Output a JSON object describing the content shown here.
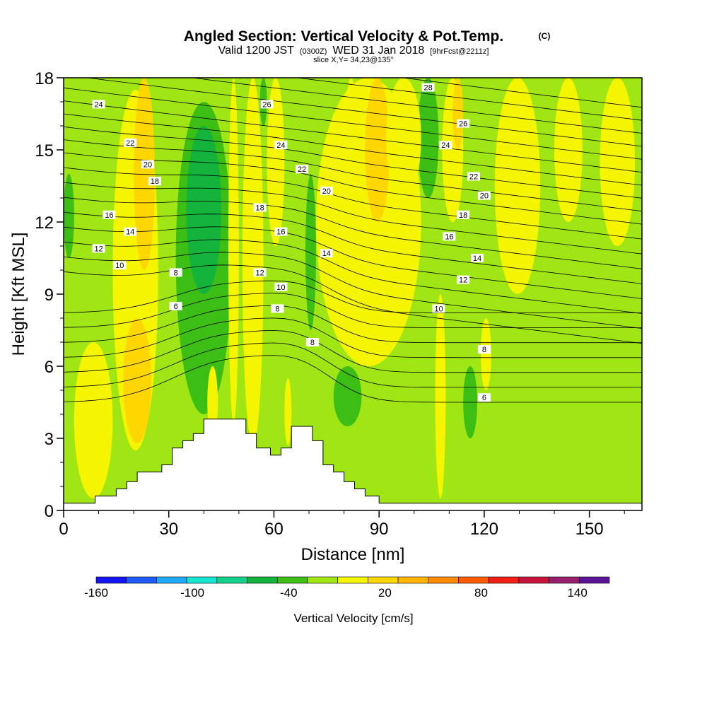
{
  "title": "Angled Section: Vertical Velocity & Pot.Temp.",
  "title_mark": "(C)",
  "subtitle": {
    "valid": "Valid 1200 JST",
    "utc": "(0300Z)",
    "date": "WED 31 Jan 2018",
    "fcst": "[9hrFcst@2211z]"
  },
  "slice": "slice X,Y= 34,23@135°",
  "chart_data": {
    "type": "heatmap",
    "xlabel": "Distance [nm]",
    "ylabel": "Height [Kft MSL]",
    "xlim": [
      0,
      165
    ],
    "ylim": [
      0,
      18
    ],
    "x_ticks": [
      0,
      30,
      60,
      90,
      120,
      150
    ],
    "y_ticks": [
      0,
      3,
      6,
      9,
      12,
      15,
      18
    ],
    "colorbar": {
      "label": "Vertical Velocity [cm/s]",
      "range": [
        -160,
        160
      ],
      "step": 20,
      "tick_values": [
        -160,
        -100,
        -40,
        20,
        80,
        140
      ],
      "tick_labels": [
        "-160",
        "-100",
        "-40",
        "20",
        "80",
        "140"
      ],
      "colors": [
        "#1414f0",
        "#1e5af5",
        "#1eaaf5",
        "#14e6d2",
        "#14d28c",
        "#14b43c",
        "#3cbe14",
        "#a0e614",
        "#f5f500",
        "#ffd700",
        "#ffb400",
        "#ff8c00",
        "#ff5a00",
        "#f01e14",
        "#c8143c",
        "#961e6e",
        "#5a1496"
      ]
    },
    "velocity_bands": [
      {
        "x0": 0,
        "x1": 3,
        "y0": 10.5,
        "y1": 14,
        "value": -30
      },
      {
        "x0": 3,
        "x1": 14,
        "y0": 0.5,
        "y1": 7,
        "value": 10
      },
      {
        "x0": 14,
        "x1": 27,
        "y0": 2.5,
        "y1": 17.5,
        "value": 10
      },
      {
        "x0": 17,
        "x1": 25,
        "y0": 2.8,
        "y1": 8,
        "value": 30
      },
      {
        "x0": 20,
        "x1": 26,
        "y0": 10,
        "y1": 18,
        "value": 30
      },
      {
        "x0": 32,
        "x1": 48,
        "y0": 4,
        "y1": 17,
        "value": -30
      },
      {
        "x0": 35,
        "x1": 45,
        "y0": 9,
        "y1": 16,
        "value": -50
      },
      {
        "x0": 41,
        "x1": 44,
        "y0": 3,
        "y1": 6,
        "value": 10
      },
      {
        "x0": 47,
        "x1": 50,
        "y0": 3.6,
        "y1": 18,
        "value": 10
      },
      {
        "x0": 51,
        "x1": 57,
        "y0": 2.7,
        "y1": 18,
        "value": 10
      },
      {
        "x0": 56,
        "x1": 58,
        "y0": 16,
        "y1": 18,
        "value": -30
      },
      {
        "x0": 58,
        "x1": 63,
        "y0": 11,
        "y1": 18,
        "value": 10
      },
      {
        "x0": 63,
        "x1": 65,
        "y0": 2.7,
        "y1": 5.5,
        "value": 10
      },
      {
        "x0": 69,
        "x1": 72,
        "y0": 7.5,
        "y1": 14,
        "value": -30
      },
      {
        "x0": 72,
        "x1": 102,
        "y0": 6,
        "y1": 18,
        "value": 10
      },
      {
        "x0": 80,
        "x1": 84,
        "y0": 11,
        "y1": 18,
        "value": 10
      },
      {
        "x0": 86,
        "x1": 93,
        "y0": 12,
        "y1": 18,
        "value": 30
      },
      {
        "x0": 77,
        "x1": 85,
        "y0": 3.5,
        "y1": 6,
        "value": -30
      },
      {
        "x0": 91,
        "x1": 99,
        "y0": 9,
        "y1": 13,
        "value": 10
      },
      {
        "x0": 101,
        "x1": 107,
        "y0": 13,
        "y1": 18,
        "value": -30
      },
      {
        "x0": 92,
        "x1": 102,
        "y0": 13,
        "y1": 18,
        "value": 10
      },
      {
        "x0": 108,
        "x1": 114,
        "y0": 12,
        "y1": 18,
        "value": 10
      },
      {
        "x0": 111,
        "x1": 114,
        "y0": 15,
        "y1": 18,
        "value": 30
      },
      {
        "x0": 106,
        "x1": 109,
        "y0": 0.5,
        "y1": 9,
        "value": 10
      },
      {
        "x0": 114,
        "x1": 118,
        "y0": 3,
        "y1": 6,
        "value": -30
      },
      {
        "x0": 119,
        "x1": 122,
        "y0": 5,
        "y1": 8,
        "value": 10
      },
      {
        "x0": 123,
        "x1": 136,
        "y0": 9,
        "y1": 18,
        "value": 10
      },
      {
        "x0": 140,
        "x1": 148,
        "y0": 12,
        "y1": 18,
        "value": 10
      },
      {
        "x0": 153,
        "x1": 163,
        "y0": 11,
        "y1": 18,
        "value": 10
      }
    ],
    "terrain": [
      [
        0,
        0.3
      ],
      [
        9,
        0.3
      ],
      [
        9,
        0.6
      ],
      [
        15,
        0.6
      ],
      [
        15,
        0.9
      ],
      [
        18,
        0.9
      ],
      [
        18,
        1.2
      ],
      [
        21,
        1.2
      ],
      [
        21,
        1.6
      ],
      [
        28,
        1.6
      ],
      [
        28,
        1.9
      ],
      [
        31,
        1.9
      ],
      [
        31,
        2.6
      ],
      [
        34,
        2.6
      ],
      [
        34,
        2.9
      ],
      [
        37,
        2.9
      ],
      [
        37,
        3.2
      ],
      [
        40,
        3.2
      ],
      [
        40,
        3.8
      ],
      [
        52,
        3.8
      ],
      [
        52,
        3.2
      ],
      [
        55,
        3.2
      ],
      [
        55,
        2.6
      ],
      [
        59,
        2.6
      ],
      [
        59,
        2.3
      ],
      [
        62,
        2.3
      ],
      [
        62,
        2.6
      ],
      [
        65,
        2.6
      ],
      [
        65,
        3.5
      ],
      [
        71,
        3.5
      ],
      [
        71,
        2.9
      ],
      [
        74,
        2.9
      ],
      [
        74,
        1.9
      ],
      [
        77,
        1.9
      ],
      [
        77,
        1.6
      ],
      [
        80,
        1.6
      ],
      [
        80,
        1.2
      ],
      [
        83,
        1.2
      ],
      [
        83,
        0.9
      ],
      [
        86,
        0.9
      ],
      [
        86,
        0.6
      ],
      [
        90,
        0.6
      ],
      [
        90,
        0.3
      ],
      [
        165,
        0.3
      ]
    ],
    "theta_lines": [
      {
        "value": 6,
        "labels": [
          [
            32,
            8.5
          ],
          [
            120,
            4.7
          ]
        ]
      },
      {
        "value": 8,
        "labels": [
          [
            32,
            9.9
          ],
          [
            61,
            8.4
          ],
          [
            71,
            7.0
          ],
          [
            120,
            6.7
          ]
        ]
      },
      {
        "value": 10,
        "labels": [
          [
            16,
            10.2
          ],
          [
            62,
            9.3
          ],
          [
            107,
            8.4
          ]
        ]
      },
      {
        "value": 12,
        "labels": [
          [
            10,
            10.9
          ],
          [
            56,
            9.9
          ],
          [
            114,
            9.6
          ]
        ]
      },
      {
        "value": 14,
        "labels": [
          [
            19,
            11.6
          ],
          [
            75,
            10.7
          ],
          [
            118,
            10.5
          ]
        ]
      },
      {
        "value": 16,
        "labels": [
          [
            13,
            12.3
          ],
          [
            62,
            11.6
          ],
          [
            110,
            11.4
          ]
        ]
      },
      {
        "value": 18,
        "labels": [
          [
            26,
            13.7
          ],
          [
            56,
            12.6
          ],
          [
            114,
            12.3
          ]
        ]
      },
      {
        "value": 20,
        "labels": [
          [
            24,
            14.4
          ],
          [
            75,
            13.3
          ],
          [
            120,
            13.1
          ]
        ]
      },
      {
        "value": 22,
        "labels": [
          [
            19,
            15.3
          ],
          [
            68,
            14.2
          ],
          [
            117,
            13.9
          ]
        ]
      },
      {
        "value": 24,
        "labels": [
          [
            10,
            16.9
          ],
          [
            62,
            15.2
          ],
          [
            109,
            15.2
          ]
        ]
      },
      {
        "value": 26,
        "labels": [
          [
            58,
            16.9
          ],
          [
            114,
            16.1
          ]
        ]
      },
      {
        "value": 28,
        "labels": [
          [
            104,
            17.6
          ]
        ]
      }
    ]
  }
}
